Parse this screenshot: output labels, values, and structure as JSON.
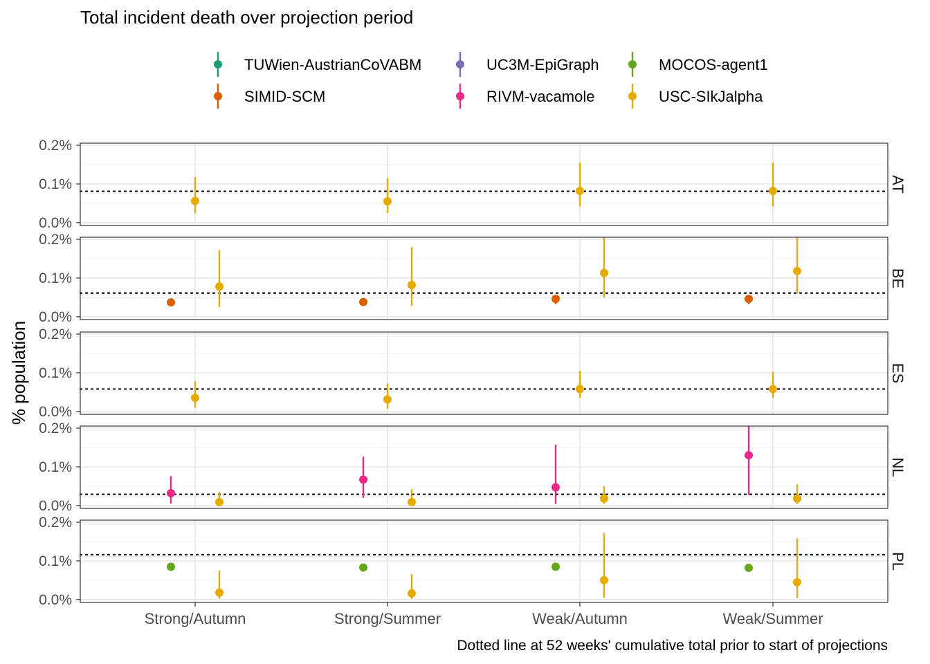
{
  "chart_data": {
    "type": "scatter",
    "title": "Total incident death over projection period",
    "ylabel": "% population",
    "caption": "Dotted line at 52 weeks' cumulative total prior to start of projections",
    "ylim": [
      -0.002,
      0.2
    ],
    "y_ticks": [
      0.0,
      0.1,
      0.2
    ],
    "y_tick_labels": [
      "0.0%",
      "0.1%",
      "0.2%"
    ],
    "categories": [
      "Strong/Autumn",
      "Strong/Summer",
      "Weak/Autumn",
      "Weak/Summer"
    ],
    "grid": true,
    "legend": {
      "position": "top"
    },
    "models": [
      {
        "name": "TUWien-AustrianCoVABM",
        "color": "#1B9E77"
      },
      {
        "name": "SIMID-SCM",
        "color": "#D95F02"
      },
      {
        "name": "UC3M-EpiGraph",
        "color": "#7570B3"
      },
      {
        "name": "RIVM-vacamole",
        "color": "#E7298A"
      },
      {
        "name": "MOCOS-agent1",
        "color": "#66A61E"
      },
      {
        "name": "USC-SIkJalpha",
        "color": "#E6AB02"
      }
    ],
    "panels": [
      {
        "label": "AT",
        "reference": 0.081,
        "points": [
          {
            "model": "USC-SIkJalpha",
            "scenario": "Strong/Autumn",
            "y": 0.056,
            "lo": 0.025,
            "hi": 0.118
          },
          {
            "model": "USC-SIkJalpha",
            "scenario": "Strong/Summer",
            "y": 0.055,
            "lo": 0.025,
            "hi": 0.115
          },
          {
            "model": "USC-SIkJalpha",
            "scenario": "Weak/Autumn",
            "y": 0.082,
            "lo": 0.042,
            "hi": 0.155
          },
          {
            "model": "USC-SIkJalpha",
            "scenario": "Weak/Summer",
            "y": 0.082,
            "lo": 0.042,
            "hi": 0.155
          }
        ]
      },
      {
        "label": "BE",
        "reference": 0.061,
        "points": [
          {
            "model": "SIMID-SCM",
            "scenario": "Strong/Autumn",
            "y": 0.037,
            "lo": 0.033,
            "hi": 0.042
          },
          {
            "model": "USC-SIkJalpha",
            "scenario": "Strong/Autumn",
            "y": 0.078,
            "lo": 0.025,
            "hi": 0.172
          },
          {
            "model": "SIMID-SCM",
            "scenario": "Strong/Summer",
            "y": 0.038,
            "lo": 0.034,
            "hi": 0.042
          },
          {
            "model": "USC-SIkJalpha",
            "scenario": "Strong/Summer",
            "y": 0.082,
            "lo": 0.028,
            "hi": 0.18
          },
          {
            "model": "SIMID-SCM",
            "scenario": "Weak/Autumn",
            "y": 0.046,
            "lo": 0.032,
            "hi": 0.055
          },
          {
            "model": "USC-SIkJalpha",
            "scenario": "Weak/Autumn",
            "y": 0.113,
            "lo": 0.05,
            "hi": 0.207
          },
          {
            "model": "SIMID-SCM",
            "scenario": "Weak/Summer",
            "y": 0.046,
            "lo": 0.032,
            "hi": 0.055
          },
          {
            "model": "USC-SIkJalpha",
            "scenario": "Weak/Summer",
            "y": 0.118,
            "lo": 0.06,
            "hi": 0.215
          }
        ]
      },
      {
        "label": "ES",
        "reference": 0.058,
        "points": [
          {
            "model": "USC-SIkJalpha",
            "scenario": "Strong/Autumn",
            "y": 0.035,
            "lo": 0.01,
            "hi": 0.078
          },
          {
            "model": "USC-SIkJalpha",
            "scenario": "Strong/Summer",
            "y": 0.031,
            "lo": 0.007,
            "hi": 0.072
          },
          {
            "model": "USC-SIkJalpha",
            "scenario": "Weak/Autumn",
            "y": 0.058,
            "lo": 0.035,
            "hi": 0.105
          },
          {
            "model": "USC-SIkJalpha",
            "scenario": "Weak/Summer",
            "y": 0.058,
            "lo": 0.035,
            "hi": 0.102
          }
        ]
      },
      {
        "label": "NL",
        "reference": 0.029,
        "points": [
          {
            "model": "RIVM-vacamole",
            "scenario": "Strong/Autumn",
            "y": 0.032,
            "lo": 0.005,
            "hi": 0.076
          },
          {
            "model": "USC-SIkJalpha",
            "scenario": "Strong/Autumn",
            "y": 0.009,
            "lo": 0.002,
            "hi": 0.035
          },
          {
            "model": "RIVM-vacamole",
            "scenario": "Strong/Summer",
            "y": 0.067,
            "lo": 0.02,
            "hi": 0.126
          },
          {
            "model": "USC-SIkJalpha",
            "scenario": "Strong/Summer",
            "y": 0.009,
            "lo": 0.002,
            "hi": 0.042
          },
          {
            "model": "RIVM-vacamole",
            "scenario": "Weak/Autumn",
            "y": 0.047,
            "lo": 0.004,
            "hi": 0.157
          },
          {
            "model": "USC-SIkJalpha",
            "scenario": "Weak/Autumn",
            "y": 0.018,
            "lo": 0.004,
            "hi": 0.05
          },
          {
            "model": "RIVM-vacamole",
            "scenario": "Weak/Summer",
            "y": 0.13,
            "lo": 0.028,
            "hi": 0.262
          },
          {
            "model": "USC-SIkJalpha",
            "scenario": "Weak/Summer",
            "y": 0.018,
            "lo": 0.004,
            "hi": 0.055
          }
        ]
      },
      {
        "label": "PL",
        "reference": 0.116,
        "points": [
          {
            "model": "MOCOS-agent1",
            "scenario": "Strong/Autumn",
            "y": 0.085,
            "lo": 0.081,
            "hi": 0.088
          },
          {
            "model": "USC-SIkJalpha",
            "scenario": "Strong/Autumn",
            "y": 0.018,
            "lo": 0.002,
            "hi": 0.075
          },
          {
            "model": "MOCOS-agent1",
            "scenario": "Strong/Summer",
            "y": 0.083,
            "lo": 0.072,
            "hi": 0.088
          },
          {
            "model": "USC-SIkJalpha",
            "scenario": "Strong/Summer",
            "y": 0.016,
            "lo": 0.002,
            "hi": 0.066
          },
          {
            "model": "MOCOS-agent1",
            "scenario": "Weak/Autumn",
            "y": 0.085,
            "lo": 0.081,
            "hi": 0.088
          },
          {
            "model": "USC-SIkJalpha",
            "scenario": "Weak/Autumn",
            "y": 0.05,
            "lo": 0.005,
            "hi": 0.172
          },
          {
            "model": "MOCOS-agent1",
            "scenario": "Weak/Summer",
            "y": 0.082,
            "lo": 0.079,
            "hi": 0.086
          },
          {
            "model": "USC-SIkJalpha",
            "scenario": "Weak/Summer",
            "y": 0.045,
            "lo": 0.004,
            "hi": 0.158
          }
        ]
      }
    ]
  }
}
